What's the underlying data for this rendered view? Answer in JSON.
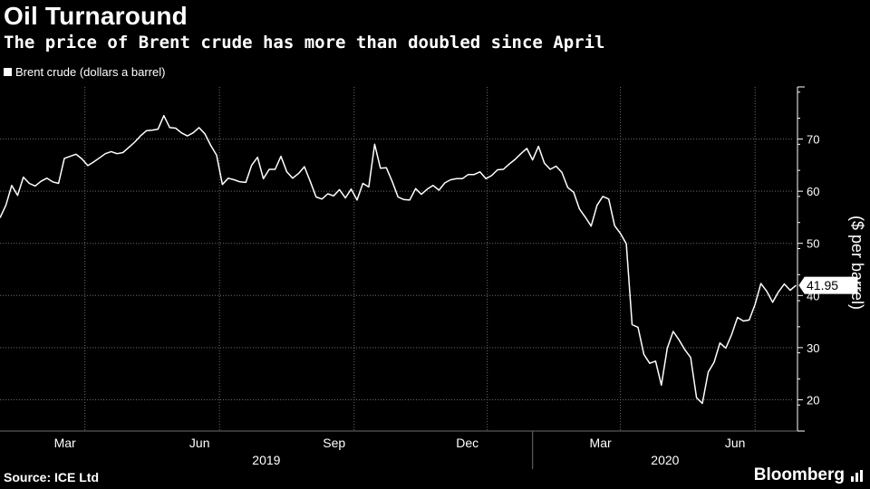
{
  "header": {
    "title": "Oil Turnaround",
    "subtitle": "The price of Brent crude has more than doubled since April"
  },
  "legend": {
    "label": "Brent crude (dollars a barrel)"
  },
  "footer": {
    "source": "Source: ICE Ltd",
    "brand": "Bloomberg"
  },
  "chart_data": {
    "type": "line",
    "title": "Oil Turnaround",
    "subtitle": "The price of Brent crude has more than doubled since April",
    "ylabel": "($ per barrel)",
    "ylim": [
      14,
      80
    ],
    "xlim": [
      "2019-01-02",
      "2020-06-30"
    ],
    "y_ticks": [
      20,
      30,
      40,
      50,
      60,
      70
    ],
    "x_tick_labels": [
      {
        "label": "Mar",
        "date": "2019-03-01"
      },
      {
        "label": "Jun",
        "date": "2019-06-01"
      },
      {
        "label": "Sep",
        "date": "2019-09-01"
      },
      {
        "label": "Dec",
        "date": "2019-12-01"
      },
      {
        "label": "Mar",
        "date": "2020-03-01"
      },
      {
        "label": "Jun",
        "date": "2020-06-01"
      }
    ],
    "year_labels": [
      {
        "label": "2019",
        "start": "2019-01-01",
        "end": "2020-01-01"
      },
      {
        "label": "2020",
        "start": "2020-01-01",
        "end": "2020-07-01"
      }
    ],
    "grid": true,
    "legend_position": "top-left",
    "last_value_label": "41.95",
    "series": [
      {
        "name": "Brent crude (dollars a barrel)",
        "color": "#ffffff",
        "points": [
          [
            "2019-01-02",
            54.9
          ],
          [
            "2019-01-06",
            57.3
          ],
          [
            "2019-01-10",
            61.1
          ],
          [
            "2019-01-14",
            59.2
          ],
          [
            "2019-01-18",
            62.7
          ],
          [
            "2019-01-22",
            61.5
          ],
          [
            "2019-01-26",
            61.0
          ],
          [
            "2019-01-30",
            61.9
          ],
          [
            "2019-02-03",
            62.5
          ],
          [
            "2019-02-07",
            61.8
          ],
          [
            "2019-02-11",
            61.5
          ],
          [
            "2019-02-15",
            66.3
          ],
          [
            "2019-02-19",
            66.7
          ],
          [
            "2019-02-23",
            67.1
          ],
          [
            "2019-02-27",
            66.2
          ],
          [
            "2019-03-03",
            64.9
          ],
          [
            "2019-03-07",
            65.6
          ],
          [
            "2019-03-11",
            66.4
          ],
          [
            "2019-03-15",
            67.2
          ],
          [
            "2019-03-19",
            67.6
          ],
          [
            "2019-03-23",
            67.2
          ],
          [
            "2019-03-27",
            67.4
          ],
          [
            "2019-03-31",
            68.4
          ],
          [
            "2019-04-04",
            69.4
          ],
          [
            "2019-04-08",
            70.6
          ],
          [
            "2019-04-12",
            71.6
          ],
          [
            "2019-04-16",
            71.7
          ],
          [
            "2019-04-20",
            71.9
          ],
          [
            "2019-04-24",
            74.5
          ],
          [
            "2019-04-28",
            72.2
          ],
          [
            "2019-05-02",
            72.1
          ],
          [
            "2019-05-06",
            71.2
          ],
          [
            "2019-05-10",
            70.6
          ],
          [
            "2019-05-14",
            71.2
          ],
          [
            "2019-05-18",
            72.2
          ],
          [
            "2019-05-22",
            71.0
          ],
          [
            "2019-05-26",
            68.8
          ],
          [
            "2019-05-30",
            66.9
          ],
          [
            "2019-06-03",
            61.3
          ],
          [
            "2019-06-07",
            62.5
          ],
          [
            "2019-06-11",
            62.2
          ],
          [
            "2019-06-15",
            61.8
          ],
          [
            "2019-06-19",
            61.7
          ],
          [
            "2019-06-23",
            65.0
          ],
          [
            "2019-06-27",
            66.5
          ],
          [
            "2019-07-01",
            62.4
          ],
          [
            "2019-07-05",
            64.2
          ],
          [
            "2019-07-09",
            64.2
          ],
          [
            "2019-07-13",
            66.7
          ],
          [
            "2019-07-17",
            63.7
          ],
          [
            "2019-07-21",
            62.5
          ],
          [
            "2019-07-25",
            63.4
          ],
          [
            "2019-07-29",
            64.7
          ],
          [
            "2019-08-02",
            61.9
          ],
          [
            "2019-08-06",
            58.9
          ],
          [
            "2019-08-10",
            58.5
          ],
          [
            "2019-08-14",
            59.5
          ],
          [
            "2019-08-18",
            59.1
          ],
          [
            "2019-08-22",
            60.3
          ],
          [
            "2019-08-26",
            58.7
          ],
          [
            "2019-08-30",
            60.4
          ],
          [
            "2019-09-03",
            58.3
          ],
          [
            "2019-09-07",
            61.5
          ],
          [
            "2019-09-11",
            60.8
          ],
          [
            "2019-09-15",
            69.0
          ],
          [
            "2019-09-19",
            64.4
          ],
          [
            "2019-09-23",
            64.5
          ],
          [
            "2019-09-27",
            61.9
          ],
          [
            "2019-10-01",
            58.9
          ],
          [
            "2019-10-05",
            58.4
          ],
          [
            "2019-10-09",
            58.3
          ],
          [
            "2019-10-13",
            60.5
          ],
          [
            "2019-10-17",
            59.4
          ],
          [
            "2019-10-21",
            60.4
          ],
          [
            "2019-10-25",
            61.1
          ],
          [
            "2019-10-29",
            60.2
          ],
          [
            "2019-11-02",
            61.6
          ],
          [
            "2019-11-06",
            62.2
          ],
          [
            "2019-11-10",
            62.4
          ],
          [
            "2019-11-14",
            62.4
          ],
          [
            "2019-11-18",
            63.2
          ],
          [
            "2019-11-22",
            63.2
          ],
          [
            "2019-11-26",
            63.7
          ],
          [
            "2019-11-30",
            62.4
          ],
          [
            "2019-12-04",
            63.0
          ],
          [
            "2019-12-08",
            64.1
          ],
          [
            "2019-12-12",
            64.2
          ],
          [
            "2019-12-16",
            65.2
          ],
          [
            "2019-12-20",
            66.1
          ],
          [
            "2019-12-24",
            67.2
          ],
          [
            "2019-12-28",
            68.2
          ],
          [
            "2020-01-01",
            66.0
          ],
          [
            "2020-01-05",
            68.6
          ],
          [
            "2020-01-09",
            65.4
          ],
          [
            "2020-01-13",
            64.2
          ],
          [
            "2020-01-17",
            64.8
          ],
          [
            "2020-01-21",
            63.6
          ],
          [
            "2020-01-25",
            60.7
          ],
          [
            "2020-01-29",
            59.8
          ],
          [
            "2020-02-02",
            56.6
          ],
          [
            "2020-02-06",
            55.0
          ],
          [
            "2020-02-10",
            53.3
          ],
          [
            "2020-02-14",
            57.3
          ],
          [
            "2020-02-18",
            59.0
          ],
          [
            "2020-02-22",
            58.5
          ],
          [
            "2020-02-26",
            53.4
          ],
          [
            "2020-03-01",
            51.9
          ],
          [
            "2020-03-05",
            49.9
          ],
          [
            "2020-03-09",
            34.4
          ],
          [
            "2020-03-13",
            33.9
          ],
          [
            "2020-03-17",
            28.7
          ],
          [
            "2020-03-21",
            27.0
          ],
          [
            "2020-03-25",
            27.4
          ],
          [
            "2020-03-29",
            22.8
          ],
          [
            "2020-04-02",
            29.9
          ],
          [
            "2020-04-06",
            33.1
          ],
          [
            "2020-04-10",
            31.5
          ],
          [
            "2020-04-14",
            29.6
          ],
          [
            "2020-04-18",
            28.1
          ],
          [
            "2020-04-22",
            20.4
          ],
          [
            "2020-04-26",
            19.3
          ],
          [
            "2020-04-30",
            25.3
          ],
          [
            "2020-05-04",
            27.2
          ],
          [
            "2020-05-08",
            30.9
          ],
          [
            "2020-05-12",
            29.9
          ],
          [
            "2020-05-16",
            32.5
          ],
          [
            "2020-05-20",
            35.8
          ],
          [
            "2020-05-24",
            35.1
          ],
          [
            "2020-05-28",
            35.3
          ],
          [
            "2020-06-01",
            38.3
          ],
          [
            "2020-06-05",
            42.3
          ],
          [
            "2020-06-09",
            40.8
          ],
          [
            "2020-06-13",
            38.7
          ],
          [
            "2020-06-17",
            40.7
          ],
          [
            "2020-06-21",
            42.2
          ],
          [
            "2020-06-25",
            41.0
          ],
          [
            "2020-06-29",
            41.95
          ]
        ]
      }
    ]
  }
}
